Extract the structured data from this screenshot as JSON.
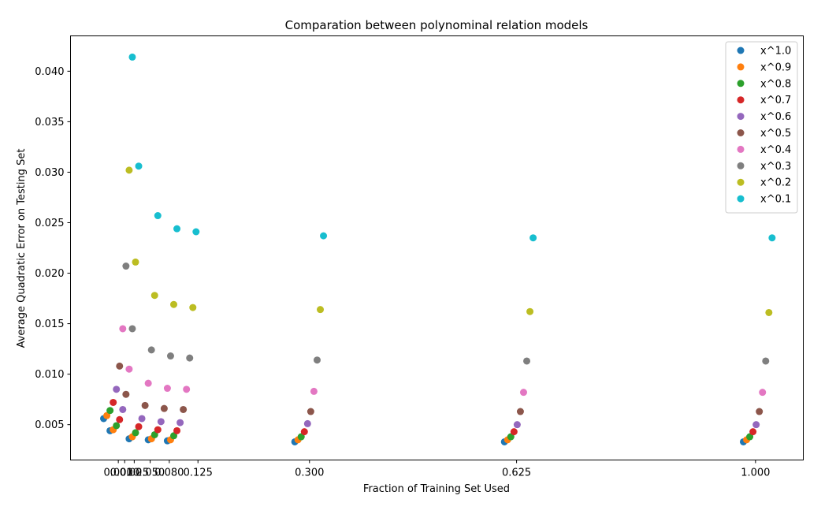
{
  "chart_data": {
    "type": "scatter",
    "title": "Comparation between polynominal relation models",
    "xlabel": "Fraction of Training Set Used",
    "ylabel": "Average Quadratic Error on Testing Set",
    "xlim": [
      -0.075,
      1.075
    ],
    "ylim": [
      0.0015,
      0.0435
    ],
    "grid": false,
    "legend_position": "top-right",
    "x_ticks": [
      {
        "value": 0.0,
        "label": "0.000"
      },
      {
        "value": 0.01,
        "label": "0.010"
      },
      {
        "value": 0.025,
        "label": "0.025"
      },
      {
        "value": 0.05,
        "label": "0.050"
      },
      {
        "value": 0.08,
        "label": "0.080"
      },
      {
        "value": 0.125,
        "label": "0.125"
      },
      {
        "value": 0.3,
        "label": "0.300"
      },
      {
        "value": 0.625,
        "label": "0.625"
      },
      {
        "value": 1.0,
        "label": "1.000"
      }
    ],
    "y_ticks": [
      {
        "value": 0.005,
        "label": "0.005"
      },
      {
        "value": 0.01,
        "label": "0.010"
      },
      {
        "value": 0.015,
        "label": "0.015"
      },
      {
        "value": 0.02,
        "label": "0.020"
      },
      {
        "value": 0.025,
        "label": "0.025"
      },
      {
        "value": 0.03,
        "label": "0.030"
      },
      {
        "value": 0.035,
        "label": "0.035"
      },
      {
        "value": 0.04,
        "label": "0.040"
      }
    ],
    "series": [
      {
        "name": "x^1.0",
        "color": "#1f77b4",
        "points": [
          [
            -0.023,
            0.0056
          ],
          [
            -0.013,
            0.0044
          ],
          [
            0.017,
            0.0036
          ],
          [
            0.047,
            0.0035
          ],
          [
            0.077,
            0.0034
          ],
          [
            0.277,
            0.0033
          ],
          [
            0.606,
            0.0033
          ],
          [
            0.981,
            0.0033
          ]
        ]
      },
      {
        "name": "x^0.9",
        "color": "#ff7f0e",
        "points": [
          [
            -0.018,
            0.0059
          ],
          [
            -0.008,
            0.0045
          ],
          [
            0.022,
            0.0038
          ],
          [
            0.052,
            0.0036
          ],
          [
            0.082,
            0.0035
          ],
          [
            0.282,
            0.0035
          ],
          [
            0.611,
            0.0035
          ],
          [
            0.986,
            0.0035
          ]
        ]
      },
      {
        "name": "x^0.8",
        "color": "#2ca02c",
        "points": [
          [
            -0.013,
            0.0064
          ],
          [
            -0.003,
            0.0049
          ],
          [
            0.027,
            0.0042
          ],
          [
            0.057,
            0.004
          ],
          [
            0.087,
            0.0039
          ],
          [
            0.287,
            0.0038
          ],
          [
            0.616,
            0.0038
          ],
          [
            0.991,
            0.0038
          ]
        ]
      },
      {
        "name": "x^0.7",
        "color": "#d62728",
        "points": [
          [
            -0.008,
            0.0072
          ],
          [
            0.002,
            0.0055
          ],
          [
            0.032,
            0.0048
          ],
          [
            0.062,
            0.0045
          ],
          [
            0.092,
            0.0044
          ],
          [
            0.292,
            0.0043
          ],
          [
            0.621,
            0.0043
          ],
          [
            0.996,
            0.0043
          ]
        ]
      },
      {
        "name": "x^0.6",
        "color": "#9467bd",
        "points": [
          [
            -0.003,
            0.0085
          ],
          [
            0.007,
            0.0065
          ],
          [
            0.037,
            0.0056
          ],
          [
            0.067,
            0.0053
          ],
          [
            0.097,
            0.0052
          ],
          [
            0.297,
            0.0051
          ],
          [
            0.626,
            0.005
          ],
          [
            1.001,
            0.005
          ]
        ]
      },
      {
        "name": "x^0.5",
        "color": "#8c564b",
        "points": [
          [
            0.002,
            0.0108
          ],
          [
            0.012,
            0.008
          ],
          [
            0.042,
            0.0069
          ],
          [
            0.072,
            0.0066
          ],
          [
            0.102,
            0.0065
          ],
          [
            0.302,
            0.0063
          ],
          [
            0.631,
            0.0063
          ],
          [
            1.006,
            0.0063
          ]
        ]
      },
      {
        "name": "x^0.4",
        "color": "#e377c2",
        "points": [
          [
            0.007,
            0.0145
          ],
          [
            0.017,
            0.0105
          ],
          [
            0.047,
            0.0091
          ],
          [
            0.077,
            0.0086
          ],
          [
            0.107,
            0.0085
          ],
          [
            0.307,
            0.0083
          ],
          [
            0.636,
            0.0082
          ],
          [
            1.011,
            0.0082
          ]
        ]
      },
      {
        "name": "x^0.3",
        "color": "#7f7f7f",
        "points": [
          [
            0.012,
            0.0207
          ],
          [
            0.022,
            0.0145
          ],
          [
            0.052,
            0.0124
          ],
          [
            0.082,
            0.0118
          ],
          [
            0.112,
            0.0116
          ],
          [
            0.312,
            0.0114
          ],
          [
            0.641,
            0.0113
          ],
          [
            1.016,
            0.0113
          ]
        ]
      },
      {
        "name": "x^0.2",
        "color": "#bcbd22",
        "points": [
          [
            0.017,
            0.0302
          ],
          [
            0.027,
            0.0211
          ],
          [
            0.057,
            0.0178
          ],
          [
            0.087,
            0.0169
          ],
          [
            0.117,
            0.0166
          ],
          [
            0.317,
            0.0164
          ],
          [
            0.646,
            0.0162
          ],
          [
            1.021,
            0.0161
          ]
        ]
      },
      {
        "name": "x^0.1",
        "color": "#17becf",
        "points": [
          [
            0.022,
            0.0414
          ],
          [
            0.032,
            0.0306
          ],
          [
            0.062,
            0.0257
          ],
          [
            0.092,
            0.0244
          ],
          [
            0.122,
            0.0241
          ],
          [
            0.322,
            0.0237
          ],
          [
            0.651,
            0.0235
          ],
          [
            1.026,
            0.0235
          ]
        ]
      }
    ]
  }
}
